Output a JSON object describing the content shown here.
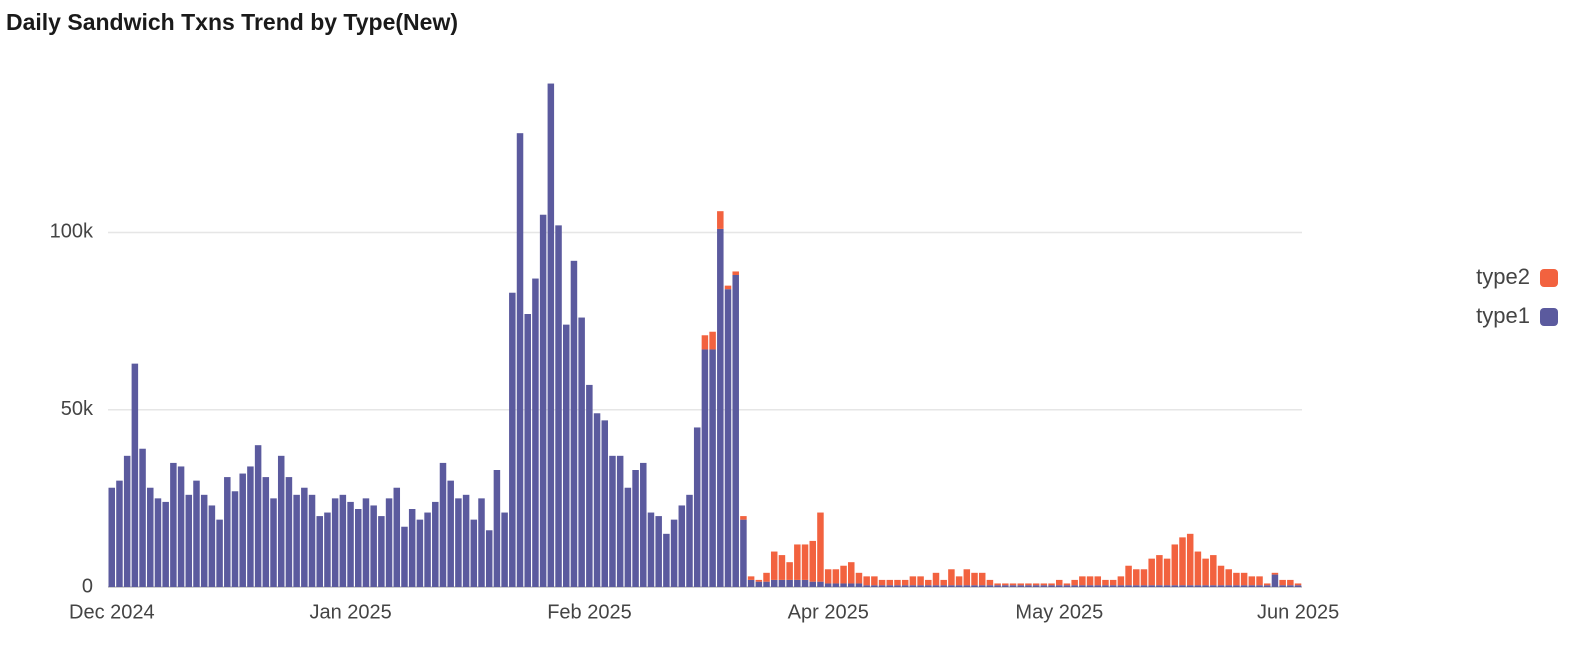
{
  "chart_data": {
    "type": "stacked_bar",
    "title": "Daily Sandwich Txns Trend by Type(New)",
    "categories": [
      "Dec 2024",
      null,
      null,
      null,
      null,
      null,
      null,
      null,
      null,
      null,
      null,
      null,
      null,
      null,
      null,
      null,
      null,
      null,
      null,
      null,
      null,
      null,
      null,
      null,
      null,
      null,
      null,
      null,
      null,
      null,
      null,
      "Jan 2025",
      null,
      null,
      null,
      null,
      null,
      null,
      null,
      null,
      null,
      null,
      null,
      null,
      null,
      null,
      null,
      null,
      null,
      null,
      null,
      null,
      null,
      null,
      null,
      null,
      null,
      null,
      null,
      null,
      null,
      null,
      "Feb 2025",
      null,
      null,
      null,
      null,
      null,
      null,
      null,
      null,
      null,
      null,
      null,
      null,
      null,
      null,
      null,
      null,
      null,
      null,
      null,
      null,
      null,
      null,
      null,
      null,
      null,
      null,
      null,
      null,
      null,
      null,
      "Apr 2025",
      null,
      null,
      null,
      null,
      null,
      null,
      null,
      null,
      null,
      null,
      null,
      null,
      null,
      null,
      null,
      null,
      null,
      null,
      null,
      null,
      null,
      null,
      null,
      null,
      null,
      null,
      null,
      null,
      null,
      "May 2025",
      null,
      null,
      null,
      null,
      null,
      null,
      null,
      null,
      null,
      null,
      null,
      null,
      null,
      null,
      null,
      null,
      null,
      null,
      null,
      null,
      null,
      null,
      null,
      null,
      null,
      null,
      null,
      null,
      null,
      null,
      "Jun 2025"
    ],
    "series": [
      {
        "name": "type1",
        "color": "#5b5a9e",
        "values": [
          28000,
          30000,
          37000,
          63000,
          39000,
          28000,
          25000,
          24000,
          35000,
          34000,
          26000,
          30000,
          26000,
          23000,
          19000,
          31000,
          27000,
          32000,
          34000,
          40000,
          31000,
          25000,
          37000,
          31000,
          26000,
          28000,
          26000,
          20000,
          21000,
          25000,
          26000,
          24000,
          22000,
          25000,
          23000,
          20000,
          25000,
          28000,
          17000,
          22000,
          19000,
          21000,
          24000,
          35000,
          30000,
          25000,
          26000,
          19000,
          25000,
          16000,
          33000,
          21000,
          83000,
          128000,
          77000,
          87000,
          105000,
          142000,
          102000,
          74000,
          92000,
          76000,
          57000,
          49000,
          47000,
          37000,
          37000,
          28000,
          33000,
          35000,
          21000,
          20000,
          15000,
          19000,
          23000,
          26000,
          45000,
          67000,
          67000,
          101000,
          84000,
          88000,
          19000,
          2000,
          1500,
          1500,
          2000,
          2000,
          2000,
          2000,
          2000,
          1500,
          1500,
          1000,
          1000,
          1000,
          1000,
          1000,
          500,
          500,
          500,
          500,
          500,
          500,
          500,
          500,
          500,
          500,
          500,
          500,
          500,
          500,
          500,
          500,
          500,
          500,
          500,
          500,
          500,
          500,
          500,
          500,
          500,
          500,
          500,
          500,
          500,
          500,
          500,
          500,
          500,
          500,
          500,
          500,
          500,
          500,
          500,
          500,
          500,
          500,
          500,
          500,
          500,
          500,
          500,
          500,
          500,
          500,
          500,
          500,
          500,
          3500,
          500,
          500,
          500
        ]
      },
      {
        "name": "type2",
        "color": "#f2623f",
        "values": [
          0,
          0,
          0,
          0,
          0,
          0,
          0,
          0,
          0,
          0,
          0,
          0,
          0,
          0,
          0,
          0,
          0,
          0,
          0,
          0,
          0,
          0,
          0,
          0,
          0,
          0,
          0,
          0,
          0,
          0,
          0,
          0,
          0,
          0,
          0,
          0,
          0,
          0,
          0,
          0,
          0,
          0,
          0,
          0,
          0,
          0,
          0,
          0,
          0,
          0,
          0,
          0,
          0,
          0,
          0,
          0,
          0,
          0,
          0,
          0,
          0,
          0,
          0,
          0,
          0,
          0,
          0,
          0,
          0,
          0,
          0,
          0,
          0,
          0,
          0,
          0,
          0,
          4000,
          5000,
          5000,
          1000,
          1000,
          1000,
          1000,
          500,
          2500,
          8000,
          7000,
          5000,
          10000,
          10000,
          11500,
          19500,
          4000,
          4000,
          5000,
          6000,
          3000,
          2500,
          2500,
          1500,
          1500,
          1500,
          1500,
          2500,
          2500,
          1500,
          3500,
          1500,
          4500,
          2500,
          4500,
          3500,
          3500,
          1500,
          500,
          500,
          500,
          500,
          500,
          500,
          500,
          500,
          1500,
          500,
          1500,
          2500,
          2500,
          2500,
          1500,
          1500,
          2500,
          5500,
          4500,
          4500,
          7500,
          8500,
          7500,
          11500,
          13500,
          14500,
          9500,
          7500,
          8500,
          5500,
          4500,
          3500,
          3500,
          2500,
          2500,
          500,
          500,
          1500,
          1500,
          500
        ]
      }
    ],
    "ylim": [
      0,
      143000
    ],
    "yticks": [
      {
        "value": 0,
        "label": "0"
      },
      {
        "value": 50000,
        "label": "50k"
      },
      {
        "value": 100000,
        "label": "100k"
      }
    ],
    "grid": true,
    "legend": "right"
  }
}
